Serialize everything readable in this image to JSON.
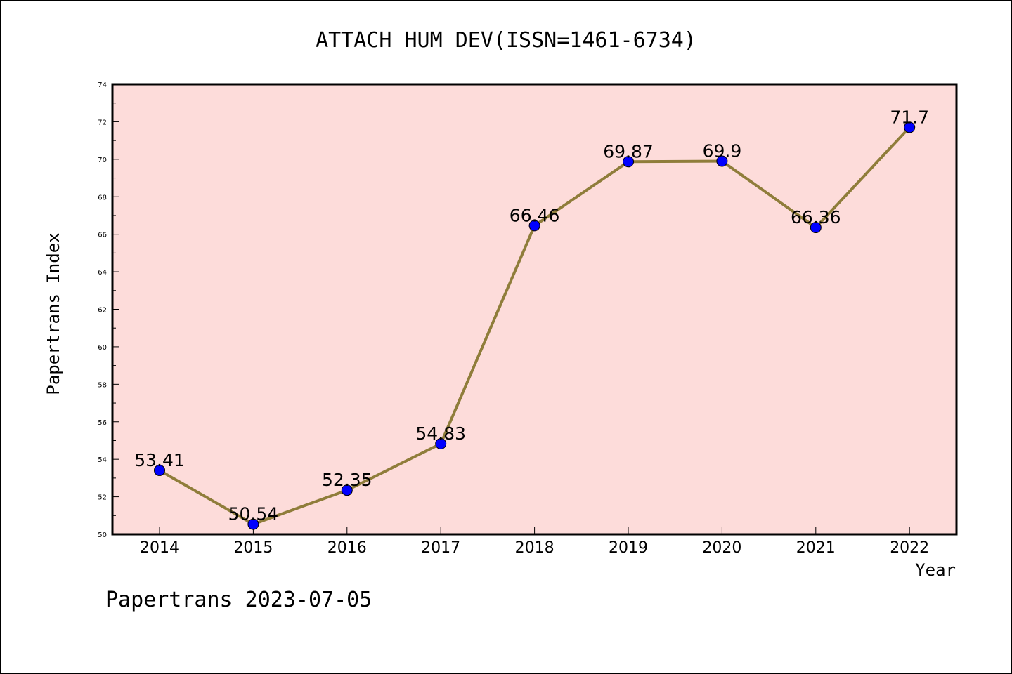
{
  "chart_data": {
    "type": "line",
    "title": "ATTACH HUM DEV(ISSN=1461-6734)",
    "xlabel": "Year",
    "ylabel": "Papertrans Index",
    "categories": [
      "2014",
      "2015",
      "2016",
      "2017",
      "2018",
      "2019",
      "2020",
      "2021",
      "2022"
    ],
    "series": [
      {
        "values": [
          53.41,
          50.54,
          52.35,
          54.83,
          66.46,
          69.87,
          69.9,
          66.36,
          71.7
        ],
        "data_labels": [
          "53.41",
          "50.54",
          "52.35",
          "54.83",
          "66.46",
          "69.87",
          "69.9",
          "66.36",
          "71.7"
        ]
      }
    ],
    "ylim": [
      50,
      74
    ],
    "yticks": [
      "50",
      "52",
      "54",
      "56",
      "58",
      "60",
      "62",
      "64",
      "66",
      "68",
      "70",
      "72",
      "74"
    ],
    "grid": false,
    "legend": "none",
    "plot_background": "#FDDCDA",
    "line_color": "#8F7D3A",
    "marker_color": "#0000FF"
  },
  "footer": "Papertrans 2023-07-05"
}
